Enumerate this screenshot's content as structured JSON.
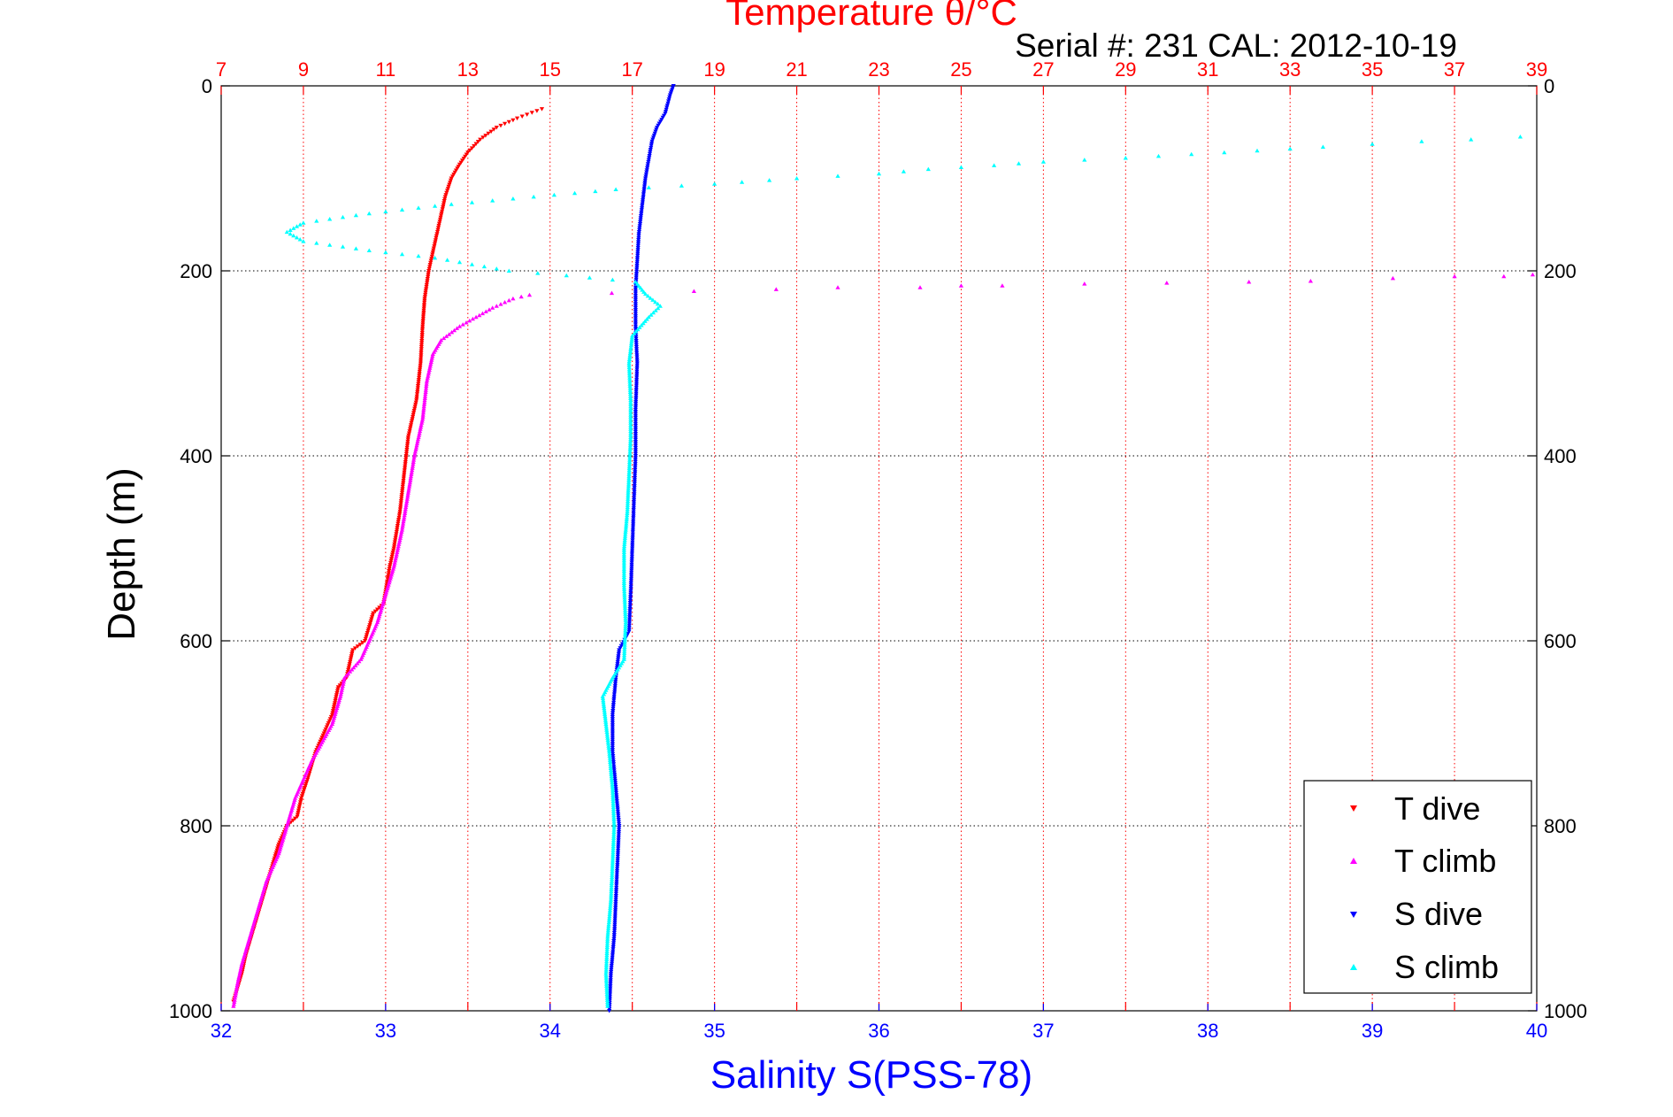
{
  "colors": {
    "temperature_axis": "#ff0000",
    "salinity_axis": "#0000ff",
    "t_dive": "#ff0000",
    "t_climb": "#ff00ff",
    "s_dive": "#0000ff",
    "s_climb": "#00ffff",
    "grid_temperature": "#ff0000",
    "grid_depth": "#000000"
  },
  "chart_data": {
    "type": "scatter",
    "title": "Temperature θ/°C",
    "subtitle": "Serial #: 231  CAL: 2012-10-19",
    "xlabel": "Salinity S(PSS-78)",
    "x2label": "Temperature θ/°C",
    "ylabel": "Depth (m)",
    "xlim": [
      32,
      40
    ],
    "x2lim": [
      7,
      39
    ],
    "ylim": [
      0,
      1000
    ],
    "y_reversed": true,
    "x_ticks": [
      "32",
      "33",
      "34",
      "35",
      "36",
      "37",
      "38",
      "39",
      "40"
    ],
    "x2_ticks": [
      "7",
      "9",
      "11",
      "13",
      "15",
      "17",
      "19",
      "21",
      "23",
      "25",
      "27",
      "29",
      "31",
      "33",
      "35",
      "37",
      "39"
    ],
    "y_ticks": [
      "0",
      "200",
      "400",
      "600",
      "800",
      "1000"
    ],
    "grid": "on",
    "legend_position": "bottom-right",
    "series": [
      {
        "name": "T dive",
        "axis": "temperature",
        "marker": "triangle-down",
        "points": [
          [
            14.8,
            25
          ],
          [
            14.2,
            35
          ],
          [
            13.7,
            45
          ],
          [
            13.3,
            58
          ],
          [
            13.0,
            72
          ],
          [
            12.8,
            85
          ],
          [
            12.6,
            100
          ],
          [
            12.45,
            120
          ],
          [
            12.35,
            140
          ],
          [
            12.25,
            160
          ],
          [
            12.15,
            180
          ],
          [
            12.05,
            200
          ],
          [
            11.95,
            230
          ],
          [
            11.9,
            260
          ],
          [
            11.85,
            300
          ],
          [
            11.75,
            340
          ],
          [
            11.55,
            380
          ],
          [
            11.45,
            420
          ],
          [
            11.35,
            460
          ],
          [
            11.2,
            500
          ],
          [
            11.1,
            520
          ],
          [
            10.95,
            560
          ],
          [
            10.7,
            570
          ],
          [
            10.5,
            600
          ],
          [
            10.2,
            610
          ],
          [
            10.05,
            640
          ],
          [
            9.85,
            650
          ],
          [
            9.7,
            680
          ],
          [
            9.5,
            700
          ],
          [
            9.3,
            720
          ],
          [
            9.1,
            750
          ],
          [
            8.95,
            770
          ],
          [
            8.85,
            790
          ],
          [
            8.6,
            800
          ],
          [
            8.4,
            820
          ],
          [
            8.2,
            850
          ],
          [
            8.0,
            880
          ],
          [
            7.8,
            910
          ],
          [
            7.6,
            940
          ],
          [
            7.5,
            960
          ],
          [
            7.3,
            990
          ]
        ]
      },
      {
        "name": "T climb",
        "axis": "temperature",
        "marker": "triangle-up",
        "points": [
          [
            7.3,
            995
          ],
          [
            7.4,
            970
          ],
          [
            7.5,
            950
          ],
          [
            7.7,
            920
          ],
          [
            7.9,
            890
          ],
          [
            8.1,
            860
          ],
          [
            8.4,
            830
          ],
          [
            8.6,
            800
          ],
          [
            8.8,
            770
          ],
          [
            9.0,
            750
          ],
          [
            9.2,
            730
          ],
          [
            9.45,
            710
          ],
          [
            9.7,
            690
          ],
          [
            9.9,
            660
          ],
          [
            10.0,
            640
          ],
          [
            10.4,
            620
          ],
          [
            10.6,
            600
          ],
          [
            10.8,
            580
          ],
          [
            11.0,
            550
          ],
          [
            11.2,
            520
          ],
          [
            11.4,
            480
          ],
          [
            11.55,
            440
          ],
          [
            11.7,
            400
          ],
          [
            11.9,
            360
          ],
          [
            12.0,
            320
          ],
          [
            12.15,
            290
          ],
          [
            12.35,
            275
          ],
          [
            12.8,
            260
          ],
          [
            13.2,
            250
          ],
          [
            13.6,
            240
          ],
          [
            14.1,
            230
          ],
          [
            14.5,
            226
          ],
          [
            16.5,
            224
          ],
          [
            20.5,
            220
          ],
          [
            22.0,
            218
          ],
          [
            24.0,
            218
          ],
          [
            25.0,
            216
          ],
          [
            26.0,
            216
          ],
          [
            28.0,
            214
          ],
          [
            30.0,
            213
          ],
          [
            32.0,
            212
          ],
          [
            33.5,
            211
          ],
          [
            35.5,
            208
          ],
          [
            37.0,
            206
          ],
          [
            38.2,
            206
          ],
          [
            38.9,
            204
          ]
        ]
      },
      {
        "name": "S dive",
        "axis": "salinity",
        "marker": "triangle-down",
        "points": [
          [
            34.75,
            0
          ],
          [
            34.73,
            10
          ],
          [
            34.7,
            30
          ],
          [
            34.65,
            45
          ],
          [
            34.62,
            60
          ],
          [
            34.6,
            80
          ],
          [
            34.58,
            100
          ],
          [
            34.56,
            130
          ],
          [
            34.54,
            160
          ],
          [
            34.53,
            190
          ],
          [
            34.52,
            220
          ],
          [
            34.52,
            260
          ],
          [
            34.53,
            300
          ],
          [
            34.52,
            350
          ],
          [
            34.52,
            400
          ],
          [
            34.51,
            450
          ],
          [
            34.5,
            500
          ],
          [
            34.49,
            550
          ],
          [
            34.48,
            590
          ],
          [
            34.42,
            610
          ],
          [
            34.4,
            640
          ],
          [
            34.38,
            680
          ],
          [
            34.38,
            720
          ],
          [
            34.4,
            760
          ],
          [
            34.42,
            800
          ],
          [
            34.41,
            840
          ],
          [
            34.4,
            880
          ],
          [
            34.39,
            920
          ],
          [
            34.37,
            960
          ],
          [
            34.36,
            1000
          ]
        ]
      },
      {
        "name": "S climb",
        "axis": "salinity",
        "marker": "triangle-up",
        "points": [
          [
            34.35,
            995
          ],
          [
            34.34,
            960
          ],
          [
            34.35,
            920
          ],
          [
            34.37,
            880
          ],
          [
            34.38,
            840
          ],
          [
            34.39,
            800
          ],
          [
            34.38,
            760
          ],
          [
            34.36,
            720
          ],
          [
            34.34,
            690
          ],
          [
            34.32,
            660
          ],
          [
            34.38,
            640
          ],
          [
            34.45,
            620
          ],
          [
            34.46,
            580
          ],
          [
            34.45,
            540
          ],
          [
            34.45,
            500
          ],
          [
            34.47,
            460
          ],
          [
            34.48,
            420
          ],
          [
            34.49,
            380
          ],
          [
            34.49,
            340
          ],
          [
            34.48,
            300
          ],
          [
            34.5,
            270
          ],
          [
            34.6,
            250
          ],
          [
            34.67,
            238
          ],
          [
            34.58,
            225
          ],
          [
            34.52,
            212
          ],
          [
            34.1,
            205
          ],
          [
            33.75,
            200
          ],
          [
            33.3,
            186
          ],
          [
            32.9,
            178
          ],
          [
            32.5,
            168
          ],
          [
            32.4,
            158
          ],
          [
            32.5,
            148
          ],
          [
            32.9,
            138
          ],
          [
            33.4,
            128
          ],
          [
            33.9,
            120
          ],
          [
            34.4,
            112
          ],
          [
            35.0,
            106
          ],
          [
            35.5,
            100
          ],
          [
            36.0,
            95
          ],
          [
            36.3,
            90
          ],
          [
            36.7,
            86
          ],
          [
            37.0,
            82
          ],
          [
            37.5,
            78
          ],
          [
            37.9,
            74
          ],
          [
            38.3,
            70
          ],
          [
            38.7,
            66
          ],
          [
            39.0,
            63
          ],
          [
            39.3,
            60
          ],
          [
            39.6,
            58
          ],
          [
            39.9,
            55
          ]
        ]
      }
    ]
  }
}
